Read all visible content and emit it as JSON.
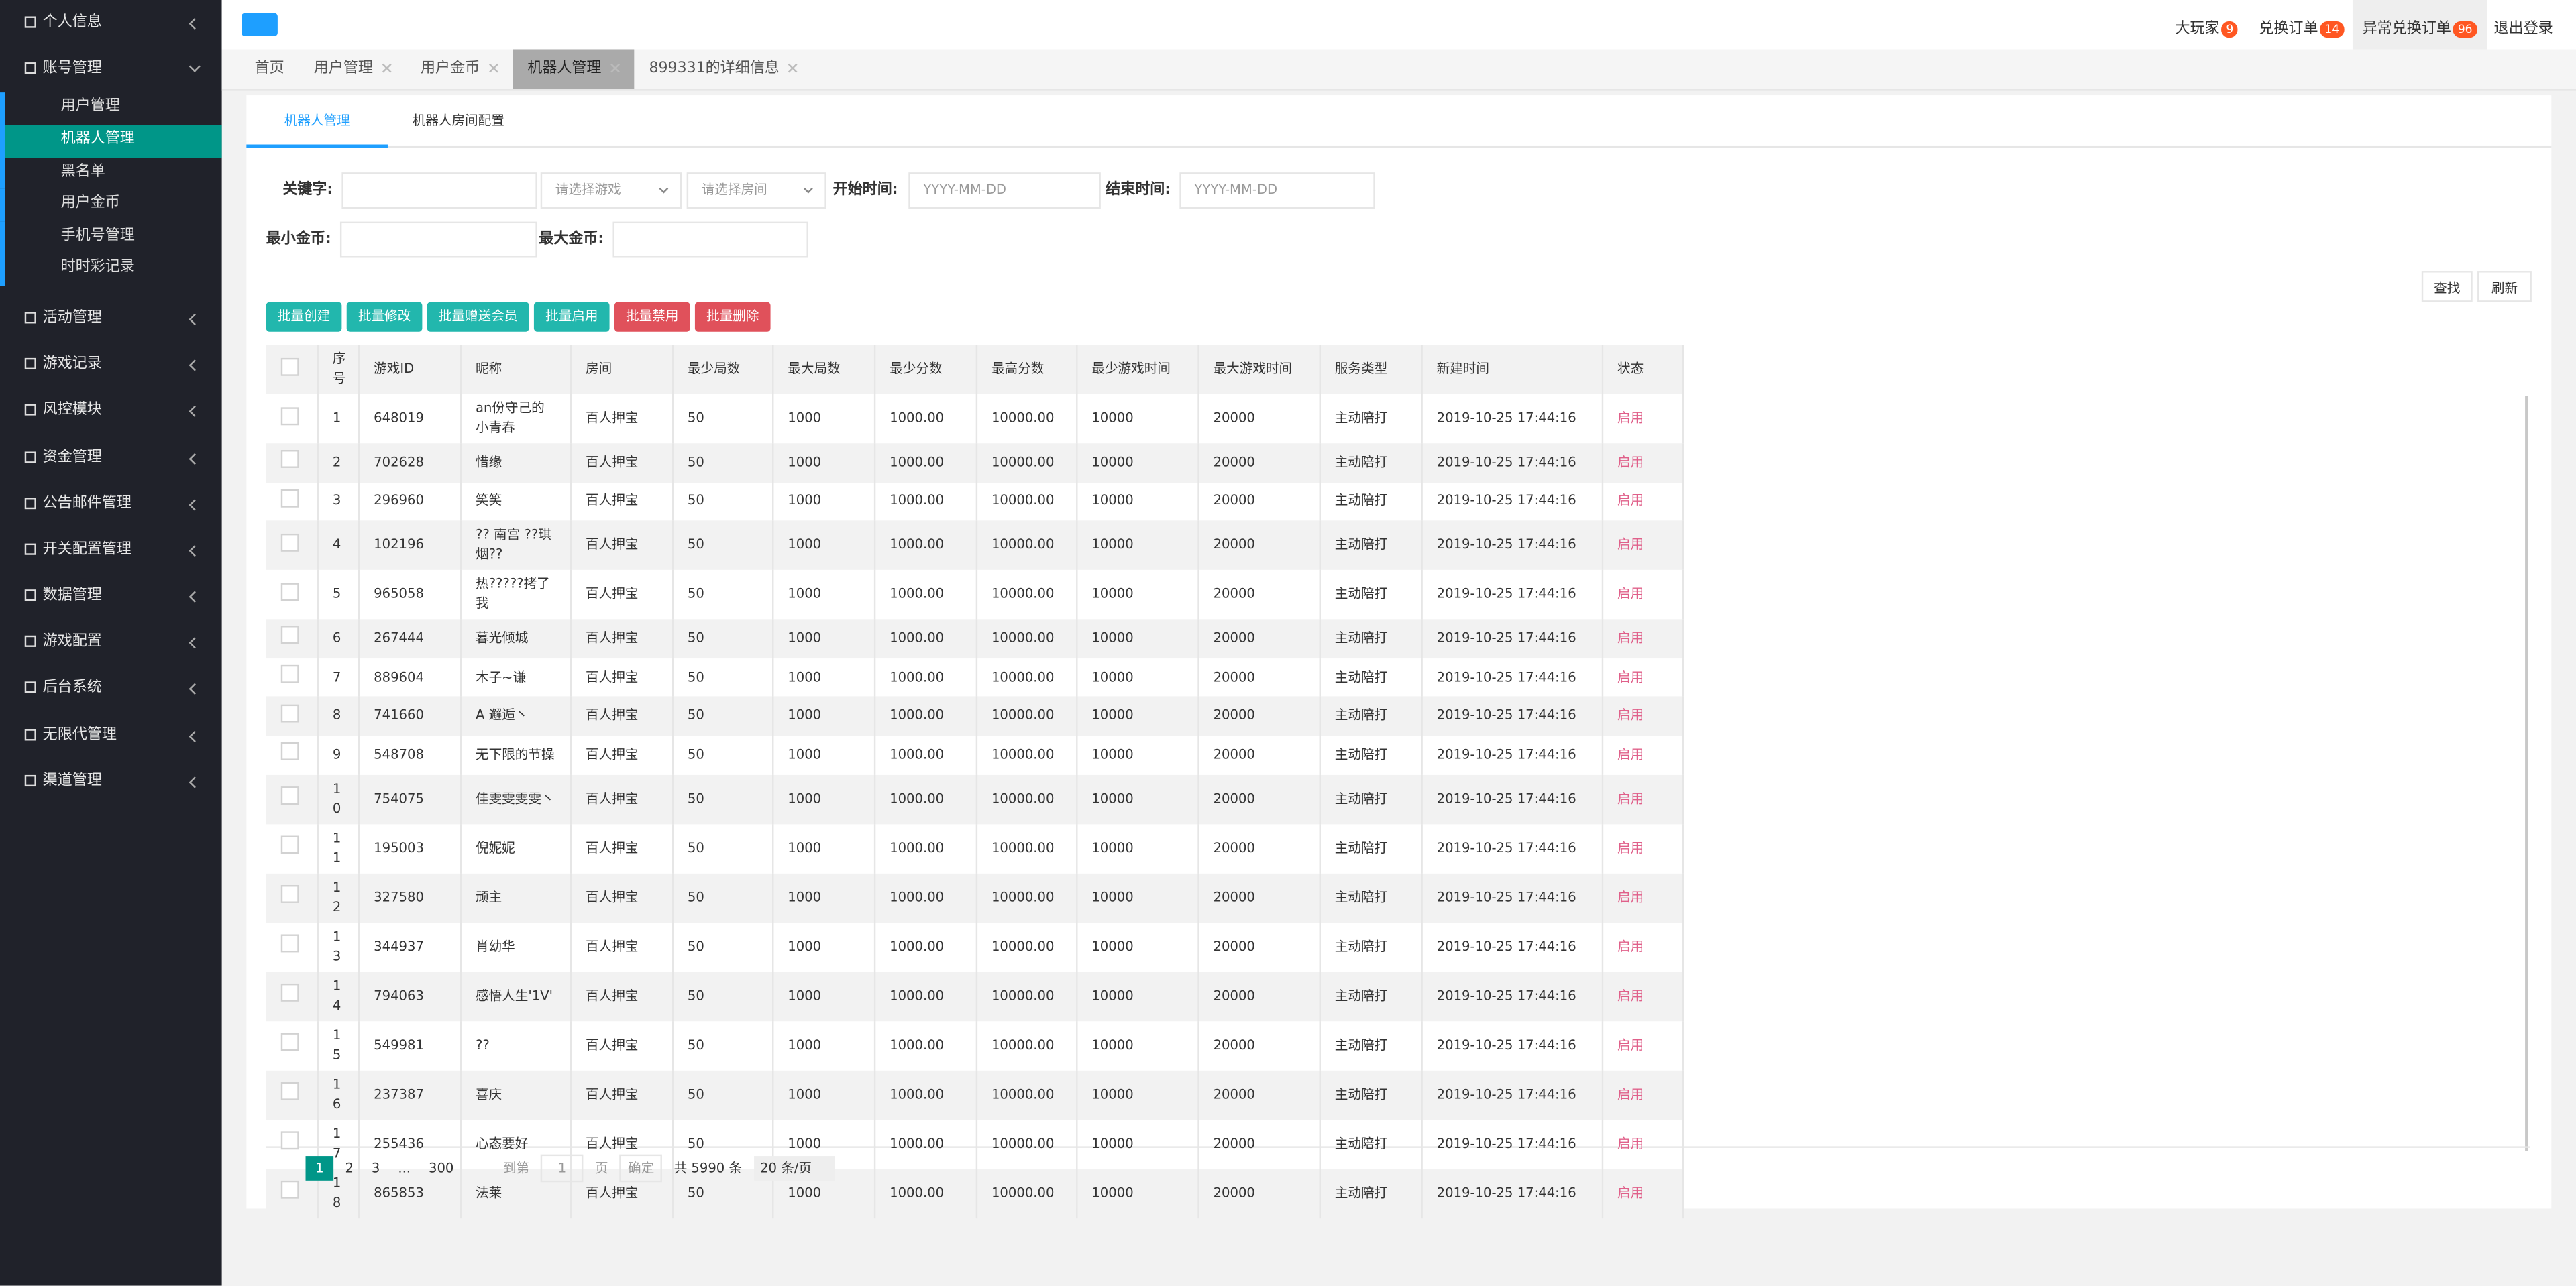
{
  "sidebar": {
    "before": [
      "个人信息"
    ],
    "group": "账号管理",
    "subitems": [
      "用户管理",
      "机器人管理",
      "黑名单",
      "用户金币",
      "手机号管理",
      "时时彩记录"
    ],
    "active_subitem": 1,
    "after": [
      "活动管理",
      "游戏记录",
      "风控模块",
      "资金管理",
      "公告邮件管理",
      "开关配置管理",
      "数据管理",
      "游戏配置",
      "后台系统",
      "无限代管理",
      "渠道管理"
    ]
  },
  "header": {
    "links": [
      {
        "label": "大玩家",
        "badge": 9
      },
      {
        "label": "兑换订单",
        "badge": 14
      },
      {
        "label": "异常兑换订单",
        "badge": 96
      }
    ],
    "logout": "退出登录"
  },
  "tabs": {
    "items": [
      "首页",
      "用户管理",
      "用户金币",
      "机器人管理",
      "899331的详细信息"
    ],
    "active": 3
  },
  "subtabs": {
    "items": [
      "机器人管理",
      "机器人房间配置"
    ],
    "active": 0
  },
  "filters": {
    "keyword": "关键字:",
    "game_select": "请选择游戏",
    "room_select": "请选择房间",
    "start_label": "开始时间:",
    "start_placeholder": "YYYY-MM-DD",
    "end_label": "结束时间:",
    "end_placeholder": "YYYY-MM-DD",
    "min_gold": "最小金币:",
    "max_gold": "最大金币:",
    "search": "查找",
    "refresh": "刷新"
  },
  "batch_buttons": [
    "批量创建",
    "批量修改",
    "批量赠送会员",
    "批量启用",
    "批量禁用",
    "批量删除"
  ],
  "table": {
    "columns": [
      "序号",
      "游戏ID",
      "昵称",
      "房间",
      "最少局数",
      "最大局数",
      "最少分数",
      "最高分数",
      "最少游戏时间",
      "最大游戏时间",
      "服务类型",
      "新建时间",
      "状态"
    ],
    "rows": [
      [
        "1",
        "648019",
        "an份守己的小青春",
        "百人押宝",
        "50",
        "1000",
        "1000.00",
        "10000.00",
        "10000",
        "20000",
        "主动陪打",
        "2019-10-25 17:44:16",
        "启用"
      ],
      [
        "2",
        "702628",
        "惜缘",
        "百人押宝",
        "50",
        "1000",
        "1000.00",
        "10000.00",
        "10000",
        "20000",
        "主动陪打",
        "2019-10-25 17:44:16",
        "启用"
      ],
      [
        "3",
        "296960",
        "笑笑",
        "百人押宝",
        "50",
        "1000",
        "1000.00",
        "10000.00",
        "10000",
        "20000",
        "主动陪打",
        "2019-10-25 17:44:16",
        "启用"
      ],
      [
        "4",
        "102196",
        "?? 南宫 ??琪烟??",
        "百人押宝",
        "50",
        "1000",
        "1000.00",
        "10000.00",
        "10000",
        "20000",
        "主动陪打",
        "2019-10-25 17:44:16",
        "启用"
      ],
      [
        "5",
        "965058",
        "热?????拷了我",
        "百人押宝",
        "50",
        "1000",
        "1000.00",
        "10000.00",
        "10000",
        "20000",
        "主动陪打",
        "2019-10-25 17:44:16",
        "启用"
      ],
      [
        "6",
        "267444",
        "暮光倾城",
        "百人押宝",
        "50",
        "1000",
        "1000.00",
        "10000.00",
        "10000",
        "20000",
        "主动陪打",
        "2019-10-25 17:44:16",
        "启用"
      ],
      [
        "7",
        "889604",
        "木子~谦",
        "百人押宝",
        "50",
        "1000",
        "1000.00",
        "10000.00",
        "10000",
        "20000",
        "主动陪打",
        "2019-10-25 17:44:16",
        "启用"
      ],
      [
        "8",
        "741660",
        "A 邂逅丶",
        "百人押宝",
        "50",
        "1000",
        "1000.00",
        "10000.00",
        "10000",
        "20000",
        "主动陪打",
        "2019-10-25 17:44:16",
        "启用"
      ],
      [
        "9",
        "548708",
        "无下限的节操",
        "百人押宝",
        "50",
        "1000",
        "1000.00",
        "10000.00",
        "10000",
        "20000",
        "主动陪打",
        "2019-10-25 17:44:16",
        "启用"
      ],
      [
        "10",
        "754075",
        "佳雯雯雯雯丶",
        "百人押宝",
        "50",
        "1000",
        "1000.00",
        "10000.00",
        "10000",
        "20000",
        "主动陪打",
        "2019-10-25 17:44:16",
        "启用"
      ],
      [
        "11",
        "195003",
        "倪妮妮",
        "百人押宝",
        "50",
        "1000",
        "1000.00",
        "10000.00",
        "10000",
        "20000",
        "主动陪打",
        "2019-10-25 17:44:16",
        "启用"
      ],
      [
        "12",
        "327580",
        "顽主",
        "百人押宝",
        "50",
        "1000",
        "1000.00",
        "10000.00",
        "10000",
        "20000",
        "主动陪打",
        "2019-10-25 17:44:16",
        "启用"
      ],
      [
        "13",
        "344937",
        "肖幼华",
        "百人押宝",
        "50",
        "1000",
        "1000.00",
        "10000.00",
        "10000",
        "20000",
        "主动陪打",
        "2019-10-25 17:44:16",
        "启用"
      ],
      [
        "14",
        "794063",
        "感悟人生'1V'",
        "百人押宝",
        "50",
        "1000",
        "1000.00",
        "10000.00",
        "10000",
        "20000",
        "主动陪打",
        "2019-10-25 17:44:16",
        "启用"
      ],
      [
        "15",
        "549981",
        "??",
        "百人押宝",
        "50",
        "1000",
        "1000.00",
        "10000.00",
        "10000",
        "20000",
        "主动陪打",
        "2019-10-25 17:44:16",
        "启用"
      ],
      [
        "16",
        "237387",
        "喜庆",
        "百人押宝",
        "50",
        "1000",
        "1000.00",
        "10000.00",
        "10000",
        "20000",
        "主动陪打",
        "2019-10-25 17:44:16",
        "启用"
      ],
      [
        "17",
        "255436",
        "心态要好",
        "百人押宝",
        "50",
        "1000",
        "1000.00",
        "10000.00",
        "10000",
        "20000",
        "主动陪打",
        "2019-10-25 17:44:16",
        "启用"
      ],
      [
        "18",
        "865853",
        "法莱",
        "百人押宝",
        "50",
        "1000",
        "1000.00",
        "10000.00",
        "10000",
        "20000",
        "主动陪打",
        "2019-10-25 17:44:16",
        "启用"
      ]
    ]
  },
  "pagination": {
    "pages": [
      "1",
      "2",
      "3",
      "...",
      "300"
    ],
    "goto": "到第",
    "page_input": "1",
    "page_unit": "页",
    "confirm": "确定",
    "total": "共 5990 条",
    "page_size": "20 条/页"
  }
}
